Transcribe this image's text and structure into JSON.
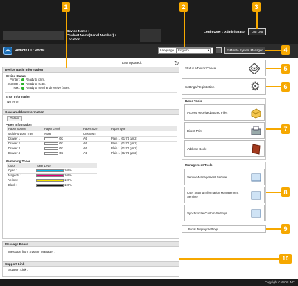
{
  "header": {
    "device_name": "Device Name :",
    "product_name": "Product Name(Serial Number) :",
    "location": "Location :",
    "login_user": "Login User :",
    "user_name": "Administrator",
    "logout": "Log Out"
  },
  "portal": {
    "title": "Remote UI : Portal",
    "language_label": "Language",
    "language_value": "English",
    "email_button": "E-Mail to System Manager",
    "last_updated": "Last Updated :"
  },
  "device_basic": {
    "title": "Device Basic Information",
    "status_heading": "Device Status",
    "statuses": [
      {
        "label": "Printer :",
        "value": "Ready to print."
      },
      {
        "label": "Scanner :",
        "value": "Ready to scan."
      },
      {
        "label": "Fax :",
        "value": "Ready to send and receive faxes."
      }
    ],
    "error_heading": "Error Information",
    "error_value": "No error."
  },
  "consumables": {
    "title": "Consumables Information",
    "details_button": "Details",
    "paper_heading": "Paper Information",
    "paper_columns": [
      "Paper Source",
      "Paper Level",
      "Paper Size",
      "Paper Type"
    ],
    "paper_rows": [
      {
        "source": "Multi-Purpose Tray",
        "level_text": "None",
        "size": "Unknown",
        "type": ""
      },
      {
        "source": "Drawer 1",
        "level_text": "OK",
        "size": "A4",
        "type": "Plain 1 (61-74 g/m2)"
      },
      {
        "source": "Drawer 2",
        "level_text": "OK",
        "size": "A4",
        "type": "Plain 1 (61-74 g/m2)"
      },
      {
        "source": "Drawer 3",
        "level_text": "OK",
        "size": "A4",
        "type": "Plain 1 (61-74 g/m2)"
      },
      {
        "source": "Drawer 4",
        "level_text": "OK",
        "size": "A4",
        "type": "Plain 1 (61-74 g/m2)"
      }
    ],
    "toner_heading": "Remaining Toner",
    "toner_columns": [
      "Color",
      "Toner Level"
    ],
    "toner_rows": [
      {
        "color": "Cyan :",
        "level": "100%",
        "hex": "#00b4e6"
      },
      {
        "color": "Magenta :",
        "level": "100%",
        "hex": "#e0007a"
      },
      {
        "color": "Yellow :",
        "level": "100%",
        "hex": "#f2e000"
      },
      {
        "color": "Black :",
        "level": "100%",
        "hex": "#111111"
      }
    ]
  },
  "message_board": {
    "title": "Message Board",
    "message": "Message from System Manager :",
    "support_title": "Support Link",
    "support_value": "Support Link :"
  },
  "right": {
    "status_monitor": "Status Monitor/Cancel",
    "settings": "Settings/Registration",
    "basic_tools_title": "Basic Tools",
    "basic_tools": [
      "Access Received/Stored Files",
      "Direct Print",
      "Address Book"
    ],
    "mgmt_tools_title": "Management Tools",
    "mgmt_tools": [
      "Service Management Service",
      "User Setting Information Management Service",
      "Synchronize Custom Settings"
    ],
    "portal_display": "Portal Display Settings"
  },
  "footer": "Copyright CANON INC.",
  "callouts": [
    "1",
    "2",
    "3",
    "4",
    "5",
    "6",
    "7",
    "8",
    "9",
    "10"
  ],
  "accent": "#f6a800"
}
